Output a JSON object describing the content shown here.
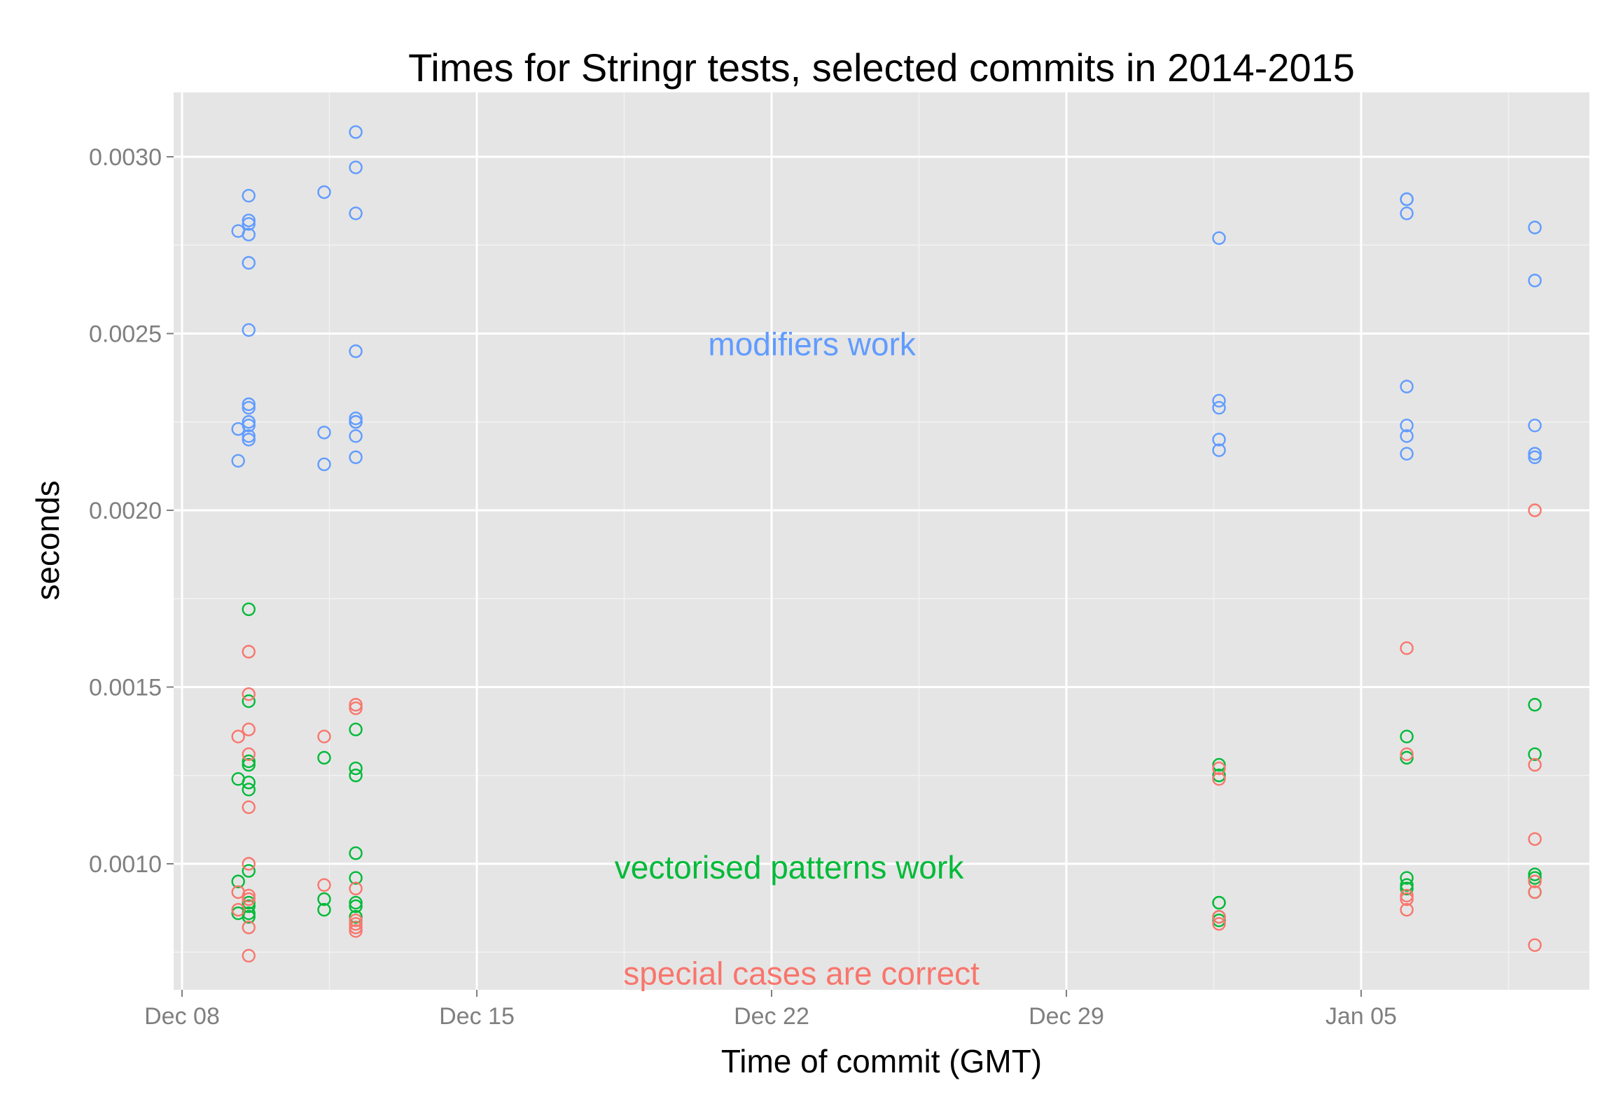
{
  "chart_data": {
    "type": "scatter",
    "title": "Times for Stringr tests, selected commits in 2014-2015",
    "xlabel": "Time of commit (GMT)",
    "ylabel": "seconds",
    "xlim": [
      "2014-12-08",
      "2015-01-09"
    ],
    "ylim": [
      0.00074,
      0.00318
    ],
    "grid": true,
    "legend": "none",
    "x_ticks": [
      {
        "date": "2014-12-08",
        "label": "Dec 08"
      },
      {
        "date": "2014-12-15",
        "label": "Dec 15"
      },
      {
        "date": "2014-12-22",
        "label": "Dec 22"
      },
      {
        "date": "2014-12-29",
        "label": "Dec 29"
      },
      {
        "date": "2015-01-05",
        "label": "Jan 05"
      }
    ],
    "y_ticks": [
      {
        "value": 0.001,
        "label": "0.0010"
      },
      {
        "value": 0.0015,
        "label": "0.0015"
      },
      {
        "value": 0.002,
        "label": "0.0020"
      },
      {
        "value": 0.0025,
        "label": "0.0025"
      },
      {
        "value": 0.003,
        "label": "0.0030"
      }
    ],
    "annotations": [
      {
        "text": "modifiers work",
        "x": "2014-12-22 23:00",
        "y": 0.00247,
        "color": "#619CFF"
      },
      {
        "text": "vectorised patterns work",
        "x": "2014-12-22 10:00",
        "y": 0.00099,
        "color": "#00BA38"
      },
      {
        "text": "special cases are correct",
        "x": "2014-12-22 17:00",
        "y": 0.00069,
        "color": "#F8766D"
      }
    ],
    "series": [
      {
        "color": "#619CFF",
        "x": [
          "2014-12-09 08:00",
          "2014-12-09 08:00",
          "2014-12-09 08:00",
          "2014-12-09 14:00",
          "2014-12-09 14:00",
          "2014-12-09 14:00",
          "2014-12-09 14:00",
          "2014-12-09 14:00",
          "2014-12-09 14:00",
          "2014-12-09 14:00",
          "2014-12-09 14:00",
          "2014-12-09 14:00",
          "2014-12-09 14:00",
          "2014-12-09 14:00",
          "2014-12-09 14:00",
          "2014-12-11 09:00",
          "2014-12-11 09:00",
          "2014-12-11 09:00",
          "2014-12-12 03:00",
          "2014-12-12 03:00",
          "2014-12-12 03:00",
          "2014-12-12 03:00",
          "2014-12-12 03:00",
          "2014-12-12 03:00",
          "2014-12-12 03:00",
          "2014-12-12 03:00",
          "2014-12-12 03:00",
          "2015-01-01 15:00",
          "2015-01-01 15:00",
          "2015-01-01 15:00",
          "2015-01-01 15:00",
          "2015-01-01 15:00",
          "2015-01-06 02:00",
          "2015-01-06 02:00",
          "2015-01-06 02:00",
          "2015-01-06 02:00",
          "2015-01-06 02:00",
          "2015-01-06 02:00",
          "2015-01-06 02:00",
          "2015-01-09 03:00",
          "2015-01-09 03:00",
          "2015-01-09 03:00",
          "2015-01-09 03:00",
          "2015-01-09 03:00",
          "2015-01-09 03:00"
        ],
        "y": [
          0.00279,
          0.00223,
          0.00214,
          0.00289,
          0.00282,
          0.00281,
          0.00278,
          0.0027,
          0.00251,
          0.0023,
          0.00229,
          0.00224,
          0.00221,
          0.0022,
          0.00225,
          0.0029,
          0.00222,
          0.00213,
          0.00307,
          0.00297,
          0.00284,
          0.00245,
          0.00226,
          0.00225,
          0.00225,
          0.00221,
          0.00215,
          0.00277,
          0.00231,
          0.00229,
          0.0022,
          0.00217,
          0.00288,
          0.00284,
          0.00235,
          0.00224,
          0.00221,
          0.00216,
          0.00288,
          0.0028,
          0.00265,
          0.00224,
          0.00216,
          0.00216,
          0.00215
        ]
      },
      {
        "color": "#00BA38",
        "x": [
          "2014-12-09 08:00",
          "2014-12-09 08:00",
          "2014-12-09 08:00",
          "2014-12-09 14:00",
          "2014-12-09 14:00",
          "2014-12-09 14:00",
          "2014-12-09 14:00",
          "2014-12-09 14:00",
          "2014-12-09 14:00",
          "2014-12-09 14:00",
          "2014-12-09 14:00",
          "2014-12-09 14:00",
          "2014-12-09 14:00",
          "2014-12-09 14:00",
          "2014-12-11 09:00",
          "2014-12-11 09:00",
          "2014-12-11 09:00",
          "2014-12-12 03:00",
          "2014-12-12 03:00",
          "2014-12-12 03:00",
          "2014-12-12 03:00",
          "2014-12-12 03:00",
          "2014-12-12 03:00",
          "2014-12-12 03:00",
          "2014-12-12 03:00",
          "2015-01-01 15:00",
          "2015-01-01 15:00",
          "2015-01-01 15:00",
          "2015-01-01 15:00",
          "2015-01-01 15:00",
          "2015-01-01 15:00",
          "2015-01-06 02:00",
          "2015-01-06 02:00",
          "2015-01-06 02:00",
          "2015-01-06 02:00",
          "2015-01-06 02:00",
          "2015-01-09 03:00",
          "2015-01-09 03:00",
          "2015-01-09 03:00",
          "2015-01-09 03:00",
          "2015-01-09 03:00"
        ],
        "y": [
          0.00124,
          0.00095,
          0.00086,
          0.00172,
          0.00146,
          0.00129,
          0.00128,
          0.00123,
          0.00121,
          0.00098,
          0.00089,
          0.00088,
          0.00086,
          0.00085,
          0.0013,
          0.0009,
          0.00087,
          0.00138,
          0.00127,
          0.00125,
          0.00103,
          0.00096,
          0.00089,
          0.00088,
          0.00085,
          0.00128,
          0.00125,
          0.00089,
          0.00089,
          0.00085,
          0.00084,
          0.00136,
          0.0013,
          0.00096,
          0.00094,
          0.00093,
          0.00145,
          0.00131,
          0.00097,
          0.00096,
          0.00092
        ]
      },
      {
        "color": "#F8766D",
        "x": [
          "2014-12-09 08:00",
          "2014-12-09 08:00",
          "2014-12-09 08:00",
          "2014-12-09 14:00",
          "2014-12-09 14:00",
          "2014-12-09 14:00",
          "2014-12-09 14:00",
          "2014-12-09 14:00",
          "2014-12-09 14:00",
          "2014-12-09 14:00",
          "2014-12-09 14:00",
          "2014-12-09 14:00",
          "2014-12-09 14:00",
          "2014-12-11 09:00",
          "2014-12-11 09:00",
          "2014-12-12 03:00",
          "2014-12-12 03:00",
          "2014-12-12 03:00",
          "2014-12-12 03:00",
          "2014-12-12 03:00",
          "2014-12-12 03:00",
          "2014-12-12 03:00",
          "2015-01-01 15:00",
          "2015-01-01 15:00",
          "2015-01-01 15:00",
          "2015-01-01 15:00",
          "2015-01-06 02:00",
          "2015-01-06 02:00",
          "2015-01-06 02:00",
          "2015-01-06 02:00",
          "2015-01-06 02:00",
          "2015-01-09 03:00",
          "2015-01-09 03:00",
          "2015-01-09 03:00",
          "2015-01-09 03:00",
          "2015-01-09 03:00",
          "2015-01-09 03:00"
        ],
        "y": [
          0.00136,
          0.00092,
          0.00087,
          0.0016,
          0.00148,
          0.00138,
          0.00131,
          0.00116,
          0.001,
          0.00091,
          0.0009,
          0.00082,
          0.00074,
          0.00136,
          0.00094,
          0.00145,
          0.00144,
          0.00093,
          0.00084,
          0.00083,
          0.00082,
          0.00081,
          0.00127,
          0.00124,
          0.00085,
          0.00083,
          0.00161,
          0.00131,
          0.00091,
          0.0009,
          0.00087,
          0.002,
          0.00128,
          0.00107,
          0.00095,
          0.00092,
          0.00077
        ]
      }
    ]
  }
}
